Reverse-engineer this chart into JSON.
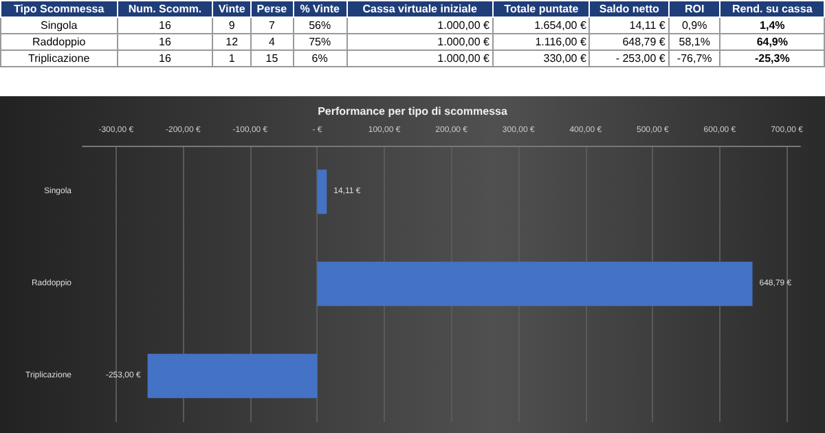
{
  "chart_data": [
    {
      "type": "other",
      "categories": [
        "Tipo Scommessa",
        "Num. Scomm.",
        "Vinte",
        "Perse",
        "% Vinte",
        "Cassa virtuale iniziale",
        "Totale puntate",
        "Saldo netto",
        "ROI",
        "Rend. su cassa"
      ],
      "annotations": [
        "Singola",
        "16",
        "9",
        "7",
        "56%",
        "1.000,00 €",
        "1.654,00 €",
        "14,11 €",
        "0,9%",
        "1,4%",
        "Raddoppio",
        "16",
        "12",
        "4",
        "75%",
        "1.000,00 €",
        "1.116,00 €",
        "648,79 €",
        "58,1%",
        "64,9%",
        "Triplicazione",
        "16",
        "1",
        "15",
        "6%",
        "1.000,00 €",
        "330,00 €",
        "- 253,00 €",
        "-76,7%",
        "-25,3%"
      ]
    },
    {
      "type": "bar",
      "orientation": "horizontal",
      "title": "Performance per tipo di scommessa",
      "categories": [
        "Singola",
        "Raddoppio",
        "Triplicazione"
      ],
      "values": [
        14.11,
        648.79,
        -253.0
      ],
      "color": "#4472c4",
      "value_labels": [
        "14,11 €",
        "648,79 €",
        "-253,00 €"
      ],
      "xlim": [
        -350,
        720
      ],
      "xticks": [
        {
          "value": -300,
          "label": "-300,00 €"
        },
        {
          "value": -200,
          "label": "-200,00 €"
        },
        {
          "value": -100,
          "label": "-100,00 €"
        },
        {
          "value": 0,
          "label": "- €"
        },
        {
          "value": 100,
          "label": "100,00 €"
        },
        {
          "value": 200,
          "label": "200,00 €"
        },
        {
          "value": 300,
          "label": "300,00 €"
        },
        {
          "value": 400,
          "label": "400,00 €"
        },
        {
          "value": 500,
          "label": "500,00 €"
        },
        {
          "value": 600,
          "label": "600,00 €"
        },
        {
          "value": 700,
          "label": "700,00 €"
        }
      ],
      "grid": "x"
    }
  ]
}
